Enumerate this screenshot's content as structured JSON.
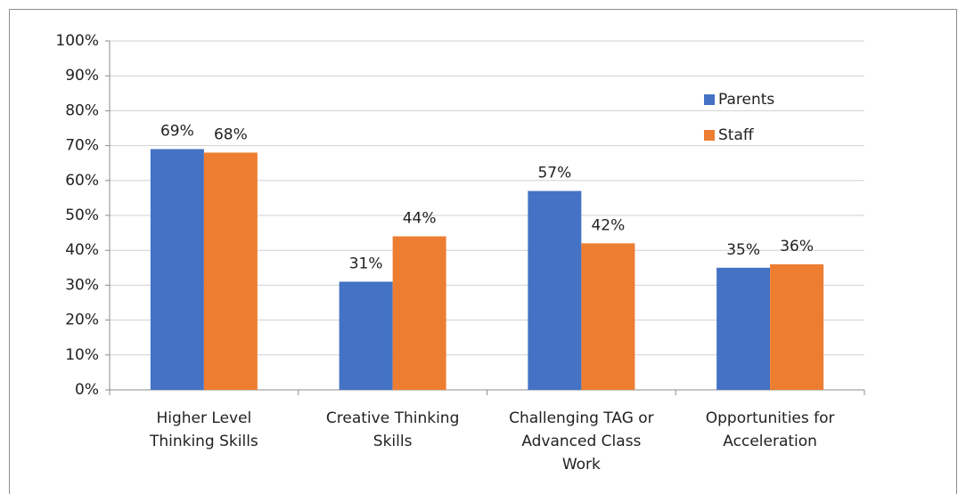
{
  "chart_data": {
    "type": "bar",
    "categories": [
      "Higher Level Thinking Skills",
      "Creative Thinking Skills",
      "Challenging TAG or Advanced Class Work",
      "Opportunities for Acceleration"
    ],
    "series": [
      {
        "name": "Parents",
        "color": "#4472c4",
        "values": [
          69,
          31,
          57,
          35
        ],
        "value_labels": [
          "69%",
          "31%",
          "57%",
          "35%"
        ]
      },
      {
        "name": "Staff",
        "color": "#ed7d31",
        "values": [
          68,
          44,
          42,
          36
        ],
        "value_labels": [
          "68%",
          "44%",
          "42%",
          "36%"
        ]
      }
    ],
    "ylim": [
      0,
      100
    ],
    "yticks": [
      {
        "value": 0,
        "label": "0%"
      },
      {
        "value": 10,
        "label": "10%"
      },
      {
        "value": 20,
        "label": "20%"
      },
      {
        "value": 30,
        "label": "30%"
      },
      {
        "value": 40,
        "label": "40%"
      },
      {
        "value": 50,
        "label": "50%"
      },
      {
        "value": 60,
        "label": "60%"
      },
      {
        "value": 70,
        "label": "70%"
      },
      {
        "value": 80,
        "label": "80%"
      },
      {
        "value": 90,
        "label": "90%"
      },
      {
        "value": 100,
        "label": "100%"
      }
    ],
    "grid": true,
    "legend": "upper right"
  }
}
